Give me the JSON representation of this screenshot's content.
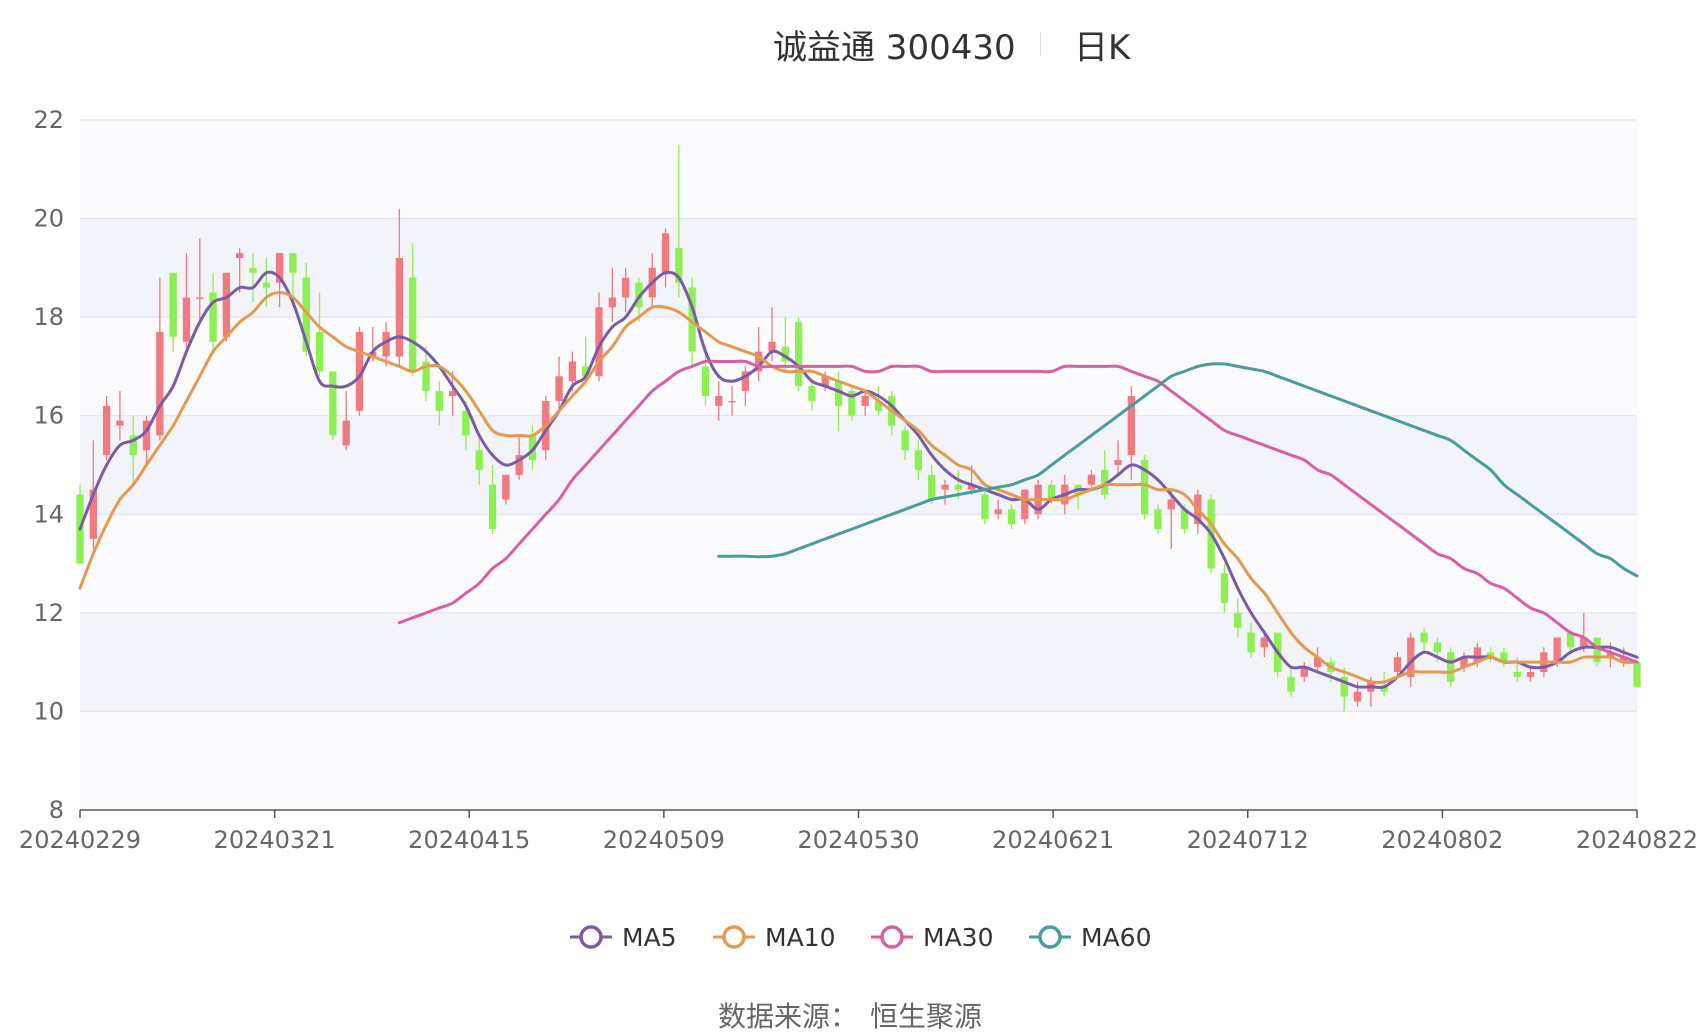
{
  "title": {
    "name": "诚益通 300430",
    "period": "日K"
  },
  "source": {
    "label": "数据来源：",
    "value": "恒生聚源"
  },
  "chart_data": {
    "type": "candlestick",
    "title": "诚益通 300430",
    "subtitle": "日K",
    "ylim": [
      8,
      22
    ],
    "y_ticks": [
      8,
      10,
      12,
      14,
      16,
      18,
      20,
      22
    ],
    "x_range": [
      "20240229",
      "20240822"
    ],
    "x_tick_labels": [
      "20240229",
      "20240321",
      "20240415",
      "20240509",
      "20240530",
      "20240621",
      "20240712",
      "20240802",
      "20240822"
    ],
    "grid": "horizontal, alternating bands",
    "legend_position": "bottom-center",
    "colors": {
      "up": "#f07a7f",
      "down": "#8cf052",
      "MA5": "#7b5aa6",
      "MA10": "#e39a50",
      "MA30": "#d95fa4",
      "MA60": "#4a9c9c"
    },
    "legend": [
      "MA5",
      "MA10",
      "MA30",
      "MA60"
    ],
    "candles_note": "approximate daily OHLC read from the chart, ordered from 20240229 to 20240822",
    "candles": [
      [
        14.4,
        13.0,
        14.6,
        13.0
      ],
      [
        13.5,
        14.5,
        15.5,
        13.3
      ],
      [
        15.2,
        16.2,
        16.4,
        15.1
      ],
      [
        15.8,
        15.9,
        16.5,
        15.5
      ],
      [
        15.6,
        15.2,
        16.0,
        14.6
      ],
      [
        15.3,
        15.9,
        16.0,
        15.0
      ],
      [
        15.6,
        17.7,
        18.8,
        15.5
      ],
      [
        18.9,
        17.6,
        18.9,
        17.3
      ],
      [
        17.5,
        18.4,
        19.3,
        17.3
      ],
      [
        18.4,
        18.4,
        19.6,
        17.9
      ],
      [
        18.5,
        17.5,
        18.9,
        17.3
      ],
      [
        17.6,
        18.9,
        18.9,
        17.5
      ],
      [
        19.2,
        19.3,
        19.4,
        18.5
      ],
      [
        19.0,
        18.9,
        19.3,
        18.3
      ],
      [
        18.7,
        18.6,
        19.2,
        18.2
      ],
      [
        18.7,
        19.3,
        19.3,
        18.2
      ],
      [
        19.3,
        18.9,
        19.3,
        18.2
      ],
      [
        18.8,
        17.3,
        19.1,
        17.2
      ],
      [
        17.7,
        16.9,
        18.5,
        16.8
      ],
      [
        16.9,
        15.6,
        16.9,
        15.5
      ],
      [
        15.4,
        15.9,
        16.5,
        15.3
      ],
      [
        16.1,
        17.7,
        17.8,
        16.0
      ],
      [
        17.2,
        17.3,
        17.8,
        17.1
      ],
      [
        17.2,
        17.7,
        17.9,
        17.0
      ],
      [
        17.2,
        19.2,
        20.2,
        17.0
      ],
      [
        18.8,
        16.9,
        19.5,
        16.8
      ],
      [
        17.1,
        16.5,
        17.4,
        16.3
      ],
      [
        16.5,
        16.1,
        16.7,
        15.8
      ],
      [
        16.4,
        16.5,
        16.9,
        16.0
      ],
      [
        16.1,
        15.6,
        16.3,
        15.3
      ],
      [
        15.3,
        14.9,
        15.6,
        14.6
      ],
      [
        14.6,
        13.7,
        15.0,
        13.6
      ],
      [
        14.3,
        14.8,
        14.8,
        14.2
      ],
      [
        14.8,
        15.2,
        15.6,
        14.7
      ],
      [
        15.6,
        15.1,
        15.8,
        14.9
      ],
      [
        15.3,
        16.3,
        16.4,
        15.1
      ],
      [
        16.3,
        16.8,
        17.2,
        16.1
      ],
      [
        16.7,
        17.1,
        17.3,
        16.5
      ],
      [
        17.0,
        16.8,
        17.6,
        16.6
      ],
      [
        16.8,
        18.2,
        18.5,
        16.7
      ],
      [
        18.2,
        18.4,
        19.0,
        17.9
      ],
      [
        18.4,
        18.8,
        19.0,
        18.1
      ],
      [
        18.7,
        18.2,
        18.8,
        17.9
      ],
      [
        18.4,
        19.0,
        19.3,
        18.2
      ],
      [
        18.9,
        19.7,
        19.8,
        18.6
      ],
      [
        19.4,
        18.7,
        21.5,
        18.4
      ],
      [
        18.6,
        17.3,
        18.8,
        17.0
      ],
      [
        17.0,
        16.4,
        17.4,
        16.2
      ],
      [
        16.2,
        16.4,
        16.7,
        15.9
      ],
      [
        16.3,
        16.3,
        16.6,
        16.0
      ],
      [
        16.5,
        16.9,
        17.0,
        16.2
      ],
      [
        16.9,
        17.3,
        17.8,
        16.7
      ],
      [
        17.3,
        17.5,
        18.2,
        17.1
      ],
      [
        17.4,
        17.1,
        18.0,
        16.9
      ],
      [
        17.9,
        16.6,
        18.0,
        16.5
      ],
      [
        16.6,
        16.3,
        16.7,
        16.1
      ],
      [
        16.6,
        16.8,
        16.9,
        16.5
      ],
      [
        16.7,
        16.2,
        16.9,
        15.7
      ],
      [
        16.5,
        16.0,
        16.6,
        15.9
      ],
      [
        16.2,
        16.4,
        16.5,
        16.0
      ],
      [
        16.3,
        16.1,
        16.6,
        16.0
      ],
      [
        16.4,
        15.8,
        16.5,
        15.6
      ],
      [
        15.7,
        15.3,
        15.8,
        15.1
      ],
      [
        15.3,
        14.9,
        15.5,
        14.7
      ],
      [
        14.8,
        14.3,
        15.0,
        14.2
      ],
      [
        14.5,
        14.6,
        14.7,
        14.2
      ],
      [
        14.6,
        14.5,
        14.9,
        14.3
      ],
      [
        14.5,
        14.6,
        15.0,
        14.4
      ],
      [
        14.4,
        13.9,
        14.6,
        13.8
      ],
      [
        14.0,
        14.1,
        14.3,
        13.9
      ],
      [
        14.1,
        13.8,
        14.2,
        13.7
      ],
      [
        13.9,
        14.5,
        14.5,
        13.8
      ],
      [
        14.0,
        14.6,
        14.7,
        13.9
      ],
      [
        14.6,
        14.3,
        14.7,
        14.2
      ],
      [
        14.2,
        14.6,
        14.8,
        14.0
      ],
      [
        14.6,
        14.4,
        14.6,
        14.1
      ],
      [
        14.6,
        14.8,
        14.9,
        14.5
      ],
      [
        14.9,
        14.4,
        15.3,
        14.3
      ],
      [
        15.0,
        15.1,
        15.5,
        14.8
      ],
      [
        15.2,
        16.4,
        16.6,
        14.7
      ],
      [
        15.1,
        14.0,
        15.2,
        13.9
      ],
      [
        14.1,
        13.7,
        14.2,
        13.6
      ],
      [
        14.1,
        14.3,
        14.5,
        13.3
      ],
      [
        14.1,
        13.7,
        14.2,
        13.6
      ],
      [
        13.8,
        14.4,
        14.5,
        13.6
      ],
      [
        14.3,
        12.9,
        14.4,
        12.8
      ],
      [
        12.8,
        12.2,
        13.0,
        12.0
      ],
      [
        12.0,
        11.7,
        12.3,
        11.5
      ],
      [
        11.6,
        11.2,
        11.8,
        11.1
      ],
      [
        11.3,
        11.5,
        11.6,
        11.1
      ],
      [
        11.6,
        10.8,
        11.6,
        10.7
      ],
      [
        10.7,
        10.4,
        10.9,
        10.3
      ],
      [
        10.7,
        10.9,
        11.0,
        10.6
      ],
      [
        10.9,
        11.1,
        11.3,
        10.8
      ],
      [
        11.0,
        10.8,
        11.1,
        10.6
      ],
      [
        10.7,
        10.3,
        10.9,
        10.0
      ],
      [
        10.2,
        10.4,
        10.6,
        10.1
      ],
      [
        10.4,
        10.6,
        10.7,
        10.1
      ],
      [
        10.5,
        10.4,
        10.8,
        10.3
      ],
      [
        10.8,
        11.1,
        11.2,
        10.7
      ],
      [
        10.7,
        11.5,
        11.6,
        10.5
      ],
      [
        11.6,
        11.4,
        11.7,
        11.2
      ],
      [
        11.4,
        11.2,
        11.5,
        11.0
      ],
      [
        11.2,
        10.6,
        11.3,
        10.5
      ],
      [
        10.9,
        11.1,
        11.2,
        10.8
      ],
      [
        11.0,
        11.3,
        11.4,
        10.9
      ],
      [
        11.2,
        11.1,
        11.3,
        11.0
      ],
      [
        11.2,
        11.0,
        11.3,
        10.9
      ],
      [
        10.8,
        10.7,
        11.1,
        10.6
      ],
      [
        10.7,
        10.8,
        10.9,
        10.6
      ],
      [
        10.8,
        11.2,
        11.3,
        10.7
      ],
      [
        11.0,
        11.5,
        11.5,
        10.9
      ],
      [
        11.6,
        11.3,
        11.6,
        11.2
      ],
      [
        11.3,
        11.5,
        12.0,
        11.2
      ],
      [
        11.5,
        11.0,
        11.5,
        10.9
      ],
      [
        11.1,
        11.2,
        11.4,
        10.9
      ],
      [
        11.0,
        11.1,
        11.3,
        10.9
      ],
      [
        11.0,
        10.5,
        11.0,
        10.5
      ]
    ],
    "ma_series": [
      {
        "name": "MA5",
        "values": [
          13.7,
          14.4,
          15.0,
          15.4,
          15.5,
          15.7,
          16.2,
          16.6,
          17.3,
          17.9,
          18.3,
          18.4,
          18.6,
          18.6,
          18.9,
          18.8,
          18.3,
          17.5,
          16.7,
          16.6,
          16.6,
          16.8,
          17.3,
          17.5,
          17.6,
          17.5,
          17.3,
          17.0,
          16.6,
          16.2,
          15.6,
          15.2,
          15.0,
          15.1,
          15.3,
          15.7,
          16.1,
          16.6,
          16.8,
          17.4,
          17.8,
          18.0,
          18.4,
          18.7,
          18.9,
          18.8,
          18.2,
          17.3,
          16.8,
          16.7,
          16.8,
          17.0,
          17.3,
          17.2,
          17.0,
          16.7,
          16.6,
          16.5,
          16.4,
          16.5,
          16.4,
          16.2,
          15.9,
          15.6,
          15.2,
          14.9,
          14.7,
          14.6,
          14.5,
          14.4,
          14.3,
          14.3,
          14.1,
          14.3,
          14.4,
          14.5,
          14.5,
          14.6,
          14.8,
          15.0,
          14.9,
          14.7,
          14.4,
          14.1,
          13.9,
          13.6,
          13.1,
          12.5,
          12.0,
          11.6,
          11.2,
          10.9,
          10.9,
          10.8,
          10.7,
          10.6,
          10.5,
          10.5,
          10.5,
          10.7,
          11.0,
          11.2,
          11.1,
          11.0,
          11.1,
          11.1,
          11.1,
          11.0,
          11.0,
          10.9,
          10.9,
          11.0,
          11.2,
          11.3,
          11.3,
          11.3,
          11.2,
          11.1
        ]
      },
      {
        "name": "MA10",
        "values": [
          12.5,
          13.2,
          13.8,
          14.3,
          14.6,
          15.0,
          15.4,
          15.8,
          16.3,
          16.8,
          17.3,
          17.6,
          17.9,
          18.1,
          18.4,
          18.5,
          18.4,
          18.1,
          17.8,
          17.6,
          17.4,
          17.3,
          17.2,
          17.1,
          17.0,
          16.9,
          17.0,
          17.0,
          16.8,
          16.5,
          16.1,
          15.7,
          15.6,
          15.6,
          15.6,
          15.8,
          16.1,
          16.4,
          16.7,
          17.1,
          17.4,
          17.8,
          18.0,
          18.2,
          18.2,
          18.1,
          17.9,
          17.7,
          17.5,
          17.4,
          17.3,
          17.2,
          17.0,
          16.9,
          16.9,
          16.9,
          16.8,
          16.7,
          16.6,
          16.5,
          16.3,
          16.1,
          15.9,
          15.7,
          15.4,
          15.2,
          15.0,
          14.9,
          14.6,
          14.5,
          14.4,
          14.3,
          14.3,
          14.3,
          14.3,
          14.4,
          14.5,
          14.6,
          14.6,
          14.6,
          14.6,
          14.5,
          14.5,
          14.4,
          14.1,
          13.8,
          13.4,
          13.1,
          12.7,
          12.4,
          12.0,
          11.6,
          11.3,
          11.1,
          10.9,
          10.8,
          10.7,
          10.6,
          10.6,
          10.7,
          10.8,
          10.8,
          10.8,
          10.8,
          10.9,
          11.0,
          11.1,
          11.0,
          11.0,
          11.0,
          11.0,
          11.0,
          11.0,
          11.1,
          11.1,
          11.1,
          11.0,
          11.0
        ]
      },
      {
        "name": "MA30",
        "values": [
          11.8,
          11.9,
          12.0,
          12.1,
          12.2,
          12.4,
          12.6,
          12.9,
          13.1,
          13.4,
          13.7,
          14.0,
          14.3,
          14.7,
          15.0,
          15.3,
          15.6,
          15.9,
          16.2,
          16.5,
          16.7,
          16.9,
          17.0,
          17.1,
          17.1,
          17.1,
          17.1,
          17.0,
          17.0,
          17.0,
          17.0,
          17.0,
          17.0,
          17.0,
          17.0,
          16.9,
          16.9,
          17.0,
          17.0,
          17.0,
          16.9,
          16.9,
          16.9,
          16.9,
          16.9,
          16.9,
          16.9,
          16.9,
          16.9,
          16.9,
          17.0,
          17.0,
          17.0,
          17.0,
          17.0,
          16.9,
          16.8,
          16.7,
          16.5,
          16.3,
          16.1,
          15.9,
          15.7,
          15.6,
          15.5,
          15.4,
          15.3,
          15.2,
          15.1,
          14.9,
          14.8,
          14.6,
          14.4,
          14.2,
          14.0,
          13.8,
          13.6,
          13.4,
          13.2,
          13.1,
          12.9,
          12.8,
          12.6,
          12.5,
          12.3,
          12.1,
          12.0,
          11.8,
          11.6,
          11.5,
          11.3,
          11.2,
          11.1,
          11.0
        ]
      },
      {
        "name": "MA60",
        "values": [
          13.15,
          13.15,
          13.15,
          13.14,
          13.15,
          13.2,
          13.3,
          13.4,
          13.5,
          13.6,
          13.7,
          13.8,
          13.9,
          14.0,
          14.1,
          14.2,
          14.3,
          14.35,
          14.4,
          14.45,
          14.5,
          14.55,
          14.6,
          14.7,
          14.8,
          15.0,
          15.2,
          15.4,
          15.6,
          15.8,
          16.0,
          16.2,
          16.4,
          16.6,
          16.8,
          16.9,
          17.0,
          17.05,
          17.05,
          17.0,
          16.95,
          16.9,
          16.8,
          16.7,
          16.6,
          16.5,
          16.4,
          16.3,
          16.2,
          16.1,
          16.0,
          15.9,
          15.8,
          15.7,
          15.6,
          15.5,
          15.3,
          15.1,
          14.9,
          14.6,
          14.4,
          14.2,
          14.0,
          13.8,
          13.6,
          13.4,
          13.2,
          13.1,
          12.9,
          12.75
        ]
      }
    ]
  }
}
